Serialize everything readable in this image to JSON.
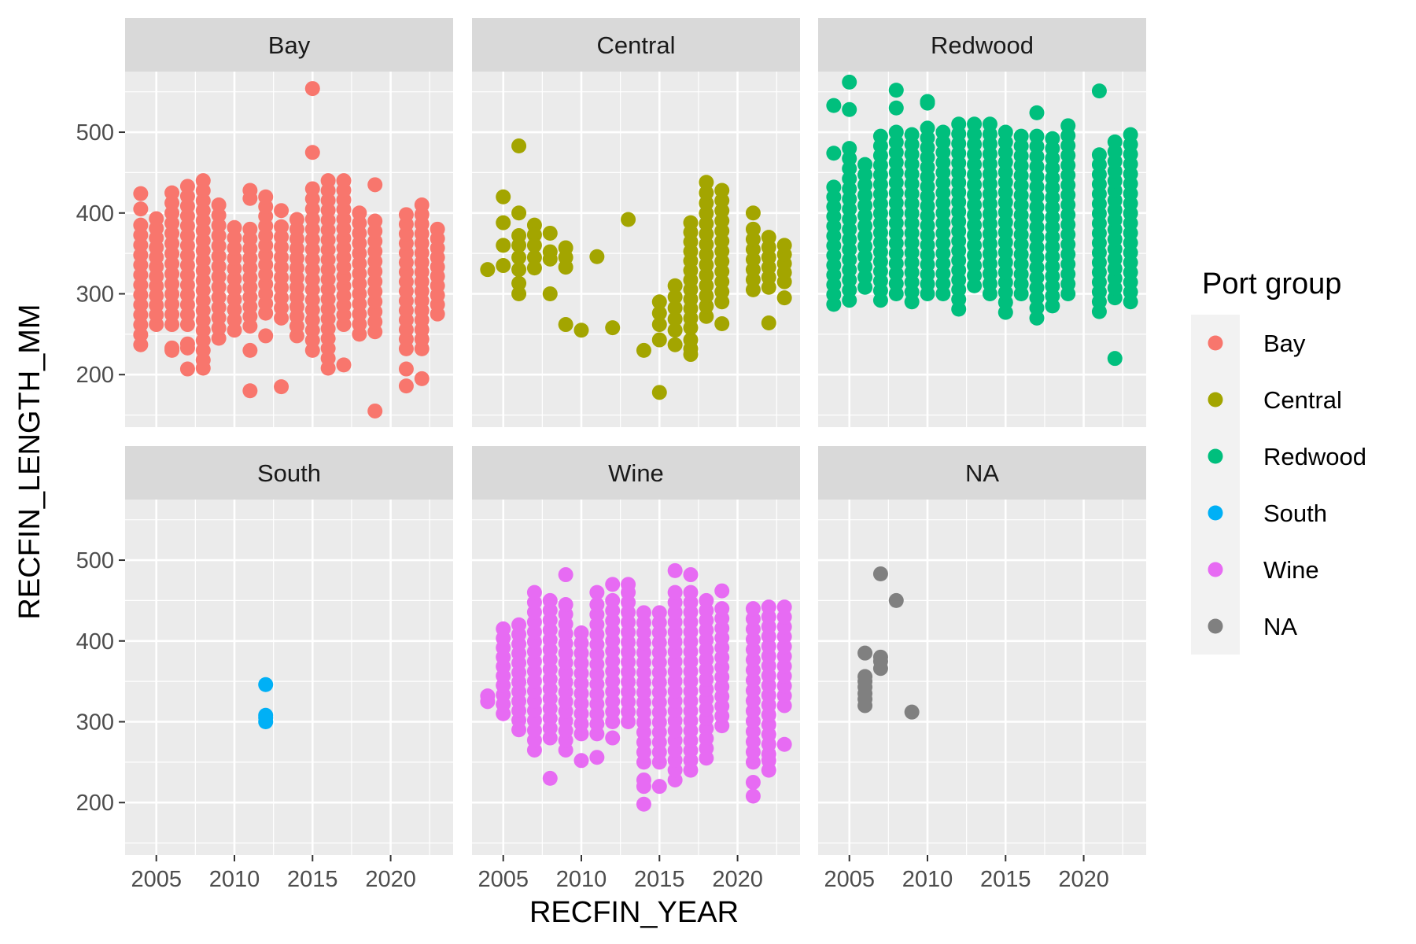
{
  "chart_data": {
    "type": "scatter",
    "facet_layout": "3 columns x 2 rows, shared axes",
    "xlabel": "RECFIN_YEAR",
    "ylabel": "RECFIN_LENGTH_MM",
    "xlim": [
      2003,
      2024
    ],
    "ylim": [
      135,
      575
    ],
    "x_ticks": [
      2005,
      2010,
      2015,
      2020
    ],
    "x_minor_ticks": [
      2002.5,
      2007.5,
      2012.5,
      2017.5,
      2022.5
    ],
    "y_ticks": [
      200,
      300,
      400,
      500
    ],
    "y_minor_ticks": [
      150,
      250,
      350,
      450,
      550
    ],
    "x_tick_labels": [
      "2005",
      "2010",
      "2015",
      "2020"
    ],
    "y_tick_labels": [
      "200",
      "300",
      "400",
      "500"
    ],
    "grid": true,
    "legend": {
      "title": "Port group",
      "position": "right",
      "entries": [
        "Bay",
        "Central",
        "Redwood",
        "South",
        "Wine",
        "NA"
      ]
    },
    "colors": {
      "Bay": "#F8766D",
      "Central": "#A3A500",
      "Redwood": "#00BF7D",
      "South": "#00B0F6",
      "Wine": "#E76BF3",
      "NA": "#808080"
    },
    "panel_background": "#EBEBEB",
    "strip_background": "#D9D9D9",
    "panels": [
      {
        "name": "Bay",
        "columns": [
          {
            "x": 2004,
            "min": 237,
            "max": 385,
            "extras": [
              424,
              405
            ]
          },
          {
            "x": 2005,
            "min": 262,
            "max": 393,
            "extras": []
          },
          {
            "x": 2006,
            "min": 262,
            "max": 425,
            "extras": [
              230,
              233
            ]
          },
          {
            "x": 2007,
            "min": 262,
            "max": 433,
            "extras": [
              207,
              233,
              238
            ]
          },
          {
            "x": 2008,
            "min": 230,
            "max": 440,
            "extras": [
              208,
              218
            ]
          },
          {
            "x": 2009,
            "min": 245,
            "max": 410,
            "extras": []
          },
          {
            "x": 2010,
            "min": 255,
            "max": 382,
            "extras": []
          },
          {
            "x": 2011,
            "min": 260,
            "max": 380,
            "extras": [
              180,
              230,
              428,
              418
            ]
          },
          {
            "x": 2012,
            "min": 276,
            "max": 420,
            "extras": [
              248
            ]
          },
          {
            "x": 2013,
            "min": 270,
            "max": 383,
            "extras": [
              185,
              403
            ]
          },
          {
            "x": 2014,
            "min": 248,
            "max": 392,
            "extras": []
          },
          {
            "x": 2015,
            "min": 230,
            "max": 430,
            "extras": [
              475,
              554
            ]
          },
          {
            "x": 2016,
            "min": 208,
            "max": 440,
            "extras": []
          },
          {
            "x": 2017,
            "min": 262,
            "max": 440,
            "extras": [
              212
            ]
          },
          {
            "x": 2018,
            "min": 250,
            "max": 400,
            "extras": []
          },
          {
            "x": 2019,
            "min": 253,
            "max": 390,
            "extras": [
              155,
              435
            ]
          },
          {
            "x": 2021,
            "min": 232,
            "max": 398,
            "extras": [
              186,
              207
            ]
          },
          {
            "x": 2022,
            "min": 232,
            "max": 410,
            "extras": [
              195
            ]
          },
          {
            "x": 2023,
            "min": 275,
            "max": 380,
            "extras": []
          }
        ]
      },
      {
        "name": "Central",
        "points": [
          [
            2004,
            330
          ],
          [
            2005,
            420
          ],
          [
            2005,
            388
          ],
          [
            2005,
            360
          ],
          [
            2005,
            335
          ],
          [
            2006,
            483
          ],
          [
            2006,
            400
          ],
          [
            2006,
            372
          ],
          [
            2006,
            360
          ],
          [
            2006,
            345
          ],
          [
            2006,
            330
          ],
          [
            2006,
            313
          ],
          [
            2006,
            300
          ],
          [
            2007,
            385
          ],
          [
            2007,
            373
          ],
          [
            2007,
            360
          ],
          [
            2007,
            345
          ],
          [
            2007,
            332
          ],
          [
            2008,
            375
          ],
          [
            2008,
            352
          ],
          [
            2008,
            343
          ],
          [
            2008,
            300
          ],
          [
            2009,
            357
          ],
          [
            2009,
            345
          ],
          [
            2009,
            333
          ],
          [
            2009,
            262
          ],
          [
            2010,
            255
          ],
          [
            2011,
            346
          ],
          [
            2012,
            258
          ],
          [
            2013,
            392
          ],
          [
            2014,
            230
          ],
          [
            2015,
            178
          ],
          [
            2015,
            243
          ],
          [
            2016,
            237
          ],
          [
            2017,
            225
          ],
          [
            2017,
            232
          ],
          [
            2017,
            243
          ],
          [
            2018,
            438
          ],
          [
            2019,
            263
          ],
          [
            2021,
            400
          ],
          [
            2022,
            264
          ],
          [
            2023,
            295
          ]
        ],
        "columns": [
          {
            "x": 2015,
            "min": 262,
            "max": 290,
            "extras": []
          },
          {
            "x": 2016,
            "min": 255,
            "max": 310,
            "extras": []
          },
          {
            "x": 2017,
            "min": 258,
            "max": 388,
            "extras": []
          },
          {
            "x": 2018,
            "min": 272,
            "max": 425,
            "extras": []
          },
          {
            "x": 2019,
            "min": 290,
            "max": 428,
            "extras": []
          },
          {
            "x": 2021,
            "min": 305,
            "max": 380,
            "extras": []
          },
          {
            "x": 2022,
            "min": 308,
            "max": 370,
            "extras": []
          },
          {
            "x": 2023,
            "min": 315,
            "max": 360,
            "extras": []
          }
        ]
      },
      {
        "name": "Redwood",
        "columns": [
          {
            "x": 2004,
            "min": 287,
            "max": 432,
            "extras": [
              474,
              533
            ]
          },
          {
            "x": 2005,
            "min": 292,
            "max": 480,
            "extras": [
              528,
              562
            ]
          },
          {
            "x": 2006,
            "min": 308,
            "max": 460,
            "extras": []
          },
          {
            "x": 2007,
            "min": 292,
            "max": 495,
            "extras": []
          },
          {
            "x": 2008,
            "min": 300,
            "max": 500,
            "extras": [
              530,
              552
            ]
          },
          {
            "x": 2009,
            "min": 290,
            "max": 497,
            "extras": []
          },
          {
            "x": 2010,
            "min": 300,
            "max": 505,
            "extras": [
              536,
              538
            ]
          },
          {
            "x": 2011,
            "min": 300,
            "max": 500,
            "extras": []
          },
          {
            "x": 2012,
            "min": 281,
            "max": 510,
            "extras": []
          },
          {
            "x": 2013,
            "min": 310,
            "max": 510,
            "extras": []
          },
          {
            "x": 2014,
            "min": 300,
            "max": 510,
            "extras": []
          },
          {
            "x": 2015,
            "min": 277,
            "max": 500,
            "extras": []
          },
          {
            "x": 2016,
            "min": 300,
            "max": 495,
            "extras": []
          },
          {
            "x": 2017,
            "min": 270,
            "max": 495,
            "extras": [
              524
            ]
          },
          {
            "x": 2018,
            "min": 285,
            "max": 492,
            "extras": []
          },
          {
            "x": 2019,
            "min": 300,
            "max": 508,
            "extras": []
          },
          {
            "x": 2021,
            "min": 278,
            "max": 472,
            "extras": [
              551
            ]
          },
          {
            "x": 2022,
            "min": 295,
            "max": 488,
            "extras": [
              220
            ]
          },
          {
            "x": 2023,
            "min": 290,
            "max": 497,
            "extras": []
          }
        ]
      },
      {
        "name": "South",
        "points": [
          [
            2012,
            346
          ],
          [
            2012,
            308
          ],
          [
            2012,
            305
          ],
          [
            2012,
            300
          ]
        ]
      },
      {
        "name": "Wine",
        "points": [
          [
            2004,
            332
          ],
          [
            2004,
            325
          ],
          [
            2008,
            230
          ],
          [
            2009,
            482
          ],
          [
            2010,
            252
          ],
          [
            2011,
            256
          ],
          [
            2011,
            460
          ],
          [
            2012,
            280
          ],
          [
            2012,
            470
          ],
          [
            2013,
            470
          ],
          [
            2014,
            198
          ],
          [
            2014,
            220
          ],
          [
            2014,
            228
          ],
          [
            2015,
            220
          ],
          [
            2016,
            487
          ],
          [
            2017,
            482
          ],
          [
            2019,
            462
          ],
          [
            2021,
            208
          ],
          [
            2021,
            225
          ],
          [
            2022,
            240
          ],
          [
            2022,
            252
          ],
          [
            2023,
            272
          ]
        ],
        "columns": [
          {
            "x": 2005,
            "min": 310,
            "max": 415,
            "extras": []
          },
          {
            "x": 2006,
            "min": 290,
            "max": 420,
            "extras": []
          },
          {
            "x": 2007,
            "min": 265,
            "max": 460,
            "extras": []
          },
          {
            "x": 2008,
            "min": 280,
            "max": 450,
            "extras": []
          },
          {
            "x": 2009,
            "min": 265,
            "max": 445,
            "extras": []
          },
          {
            "x": 2010,
            "min": 285,
            "max": 410,
            "extras": []
          },
          {
            "x": 2011,
            "min": 285,
            "max": 445,
            "extras": []
          },
          {
            "x": 2012,
            "min": 300,
            "max": 450,
            "extras": []
          },
          {
            "x": 2013,
            "min": 300,
            "max": 460,
            "extras": []
          },
          {
            "x": 2014,
            "min": 250,
            "max": 435,
            "extras": []
          },
          {
            "x": 2015,
            "min": 250,
            "max": 435,
            "extras": []
          },
          {
            "x": 2016,
            "min": 228,
            "max": 460,
            "extras": []
          },
          {
            "x": 2017,
            "min": 240,
            "max": 460,
            "extras": []
          },
          {
            "x": 2018,
            "min": 255,
            "max": 450,
            "extras": []
          },
          {
            "x": 2019,
            "min": 295,
            "max": 440,
            "extras": []
          },
          {
            "x": 2021,
            "min": 250,
            "max": 440,
            "extras": []
          },
          {
            "x": 2022,
            "min": 260,
            "max": 442,
            "extras": []
          },
          {
            "x": 2023,
            "min": 320,
            "max": 442,
            "extras": []
          }
        ]
      },
      {
        "name": "NA",
        "points": [
          [
            2006,
            385
          ],
          [
            2006,
            356
          ],
          [
            2006,
            350
          ],
          [
            2006,
            343
          ],
          [
            2006,
            335
          ],
          [
            2006,
            328
          ],
          [
            2006,
            320
          ],
          [
            2007,
            483
          ],
          [
            2007,
            380
          ],
          [
            2007,
            375
          ],
          [
            2007,
            366
          ],
          [
            2008,
            450
          ],
          [
            2009,
            312
          ]
        ]
      }
    ]
  }
}
